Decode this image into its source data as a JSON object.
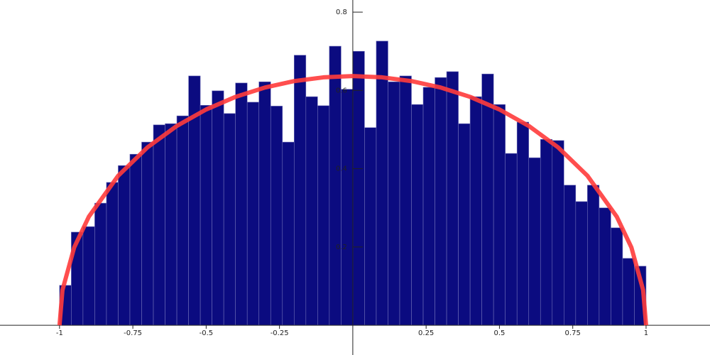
{
  "chart_data": {
    "type": "histogram",
    "bins": [
      -1,
      -0.96,
      -0.92,
      -0.88,
      -0.84,
      -0.8,
      -0.76,
      -0.72,
      -0.68,
      -0.64,
      -0.6,
      -0.56,
      -0.52,
      -0.48,
      -0.44,
      -0.4,
      -0.36,
      -0.32,
      -0.28,
      -0.24,
      -0.2,
      -0.16,
      -0.12,
      -0.08,
      -0.04,
      0,
      0.04,
      0.08,
      0.12,
      0.16,
      0.2,
      0.24,
      0.28,
      0.32,
      0.36,
      0.4,
      0.44,
      0.48,
      0.52,
      0.56,
      0.6,
      0.64,
      0.68,
      0.72,
      0.76,
      0.8,
      0.84,
      0.88,
      0.92,
      0.96,
      1
    ],
    "values": [
      0.102,
      0.238,
      0.252,
      0.312,
      0.365,
      0.408,
      0.437,
      0.468,
      0.512,
      0.515,
      0.535,
      0.637,
      0.562,
      0.599,
      0.541,
      0.619,
      0.57,
      0.622,
      0.56,
      0.468,
      0.69,
      0.584,
      0.561,
      0.713,
      0.603,
      0.7,
      0.505,
      0.726,
      0.622,
      0.637,
      0.564,
      0.608,
      0.633,
      0.648,
      0.515,
      0.584,
      0.642,
      0.564,
      0.439,
      0.519,
      0.428,
      0.475,
      0.472,
      0.358,
      0.316,
      0.358,
      0.3,
      0.249,
      0.171,
      0.151
    ],
    "color": "#0b0b80",
    "overlay": {
      "type": "line",
      "color": "#ff3b3b",
      "x": [
        -1,
        -0.99,
        -0.95,
        -0.9,
        -0.8,
        -0.7,
        -0.6,
        -0.5,
        -0.4,
        -0.3,
        -0.2,
        -0.1,
        0,
        0.1,
        0.2,
        0.3,
        0.4,
        0.5,
        0.6,
        0.7,
        0.8,
        0.9,
        0.95,
        0.99,
        1
      ],
      "values": [
        0,
        0.0898,
        0.1988,
        0.2775,
        0.382,
        0.4546,
        0.5093,
        0.5513,
        0.5835,
        0.6073,
        0.6238,
        0.6334,
        0.6366,
        0.6334,
        0.6238,
        0.6073,
        0.5835,
        0.5513,
        0.5093,
        0.4546,
        0.382,
        0.2775,
        0.1988,
        0.0898,
        0
      ]
    },
    "xlim": [
      -1.203,
      1.218
    ],
    "ylim": [
      -0.076,
      0.831
    ],
    "xticks": [
      -1,
      -0.75,
      -0.5,
      -0.25,
      0.25,
      0.5,
      0.75,
      1
    ],
    "yticks": [
      0.2,
      0.4,
      0.6,
      0.8
    ]
  }
}
